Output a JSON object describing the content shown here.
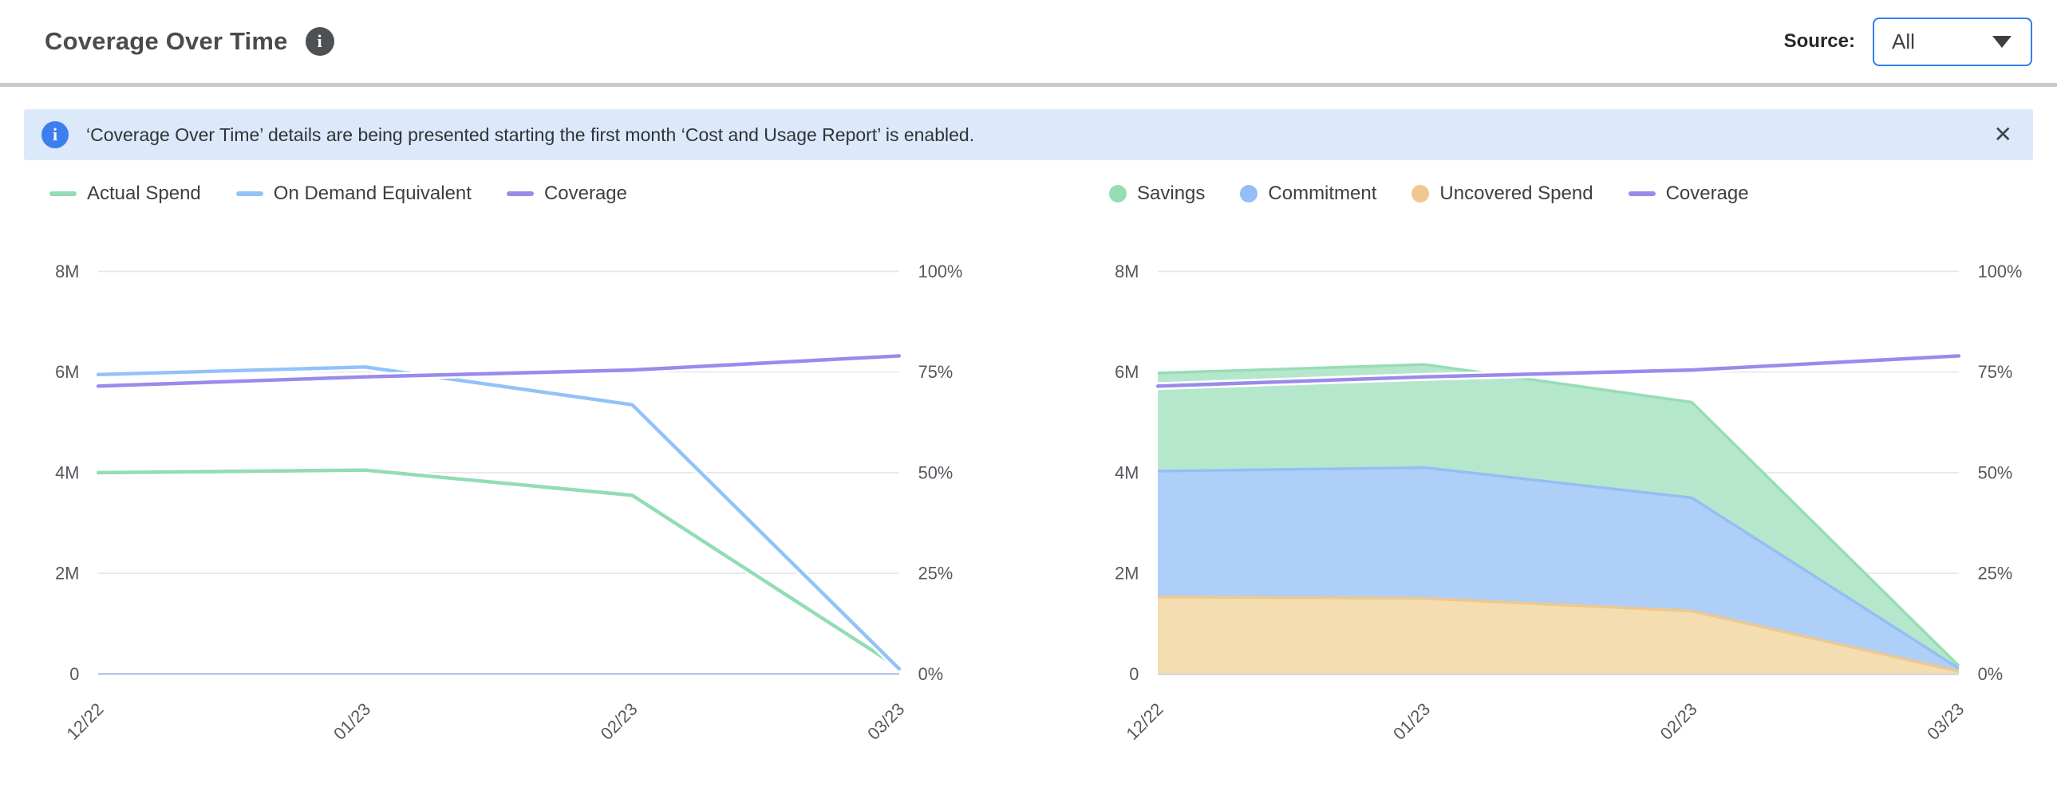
{
  "header": {
    "title": "Coverage Over Time",
    "source_label": "Source:",
    "source_value": "All"
  },
  "icons": {
    "info_glyph": "i",
    "close_glyph": "✕"
  },
  "banner": {
    "text": "‘Coverage Over Time’ details are being presented starting the first month ‘Cost and Usage Report’ is enabled."
  },
  "colors": {
    "accent_blue": "#2e80f0",
    "banner_bg": "#dce9fb",
    "banner_icon": "#3d7ef0",
    "title_icon": "#4d5154",
    "grid": "#e6e6ea",
    "zero_line": "#b7c3e8",
    "axis_text": "#55585e",
    "green": "#93dcb5",
    "blue": "#92c2f8",
    "purple": "#9b8aec",
    "orange": "#eec88f",
    "green_fill": "#b5e7cc",
    "blue_fill": "#aecff7",
    "orange_fill": "#f4ddb0"
  },
  "chart_data": [
    {
      "type": "line",
      "title": "",
      "x": [
        "12/22",
        "01/23",
        "02/23",
        "03/23"
      ],
      "left_axis": {
        "min": 0,
        "max": 8000000,
        "tick_values": [
          0,
          2000000,
          4000000,
          6000000,
          8000000
        ],
        "tick_labels": [
          "0",
          "2M",
          "4M",
          "6M",
          "8M"
        ]
      },
      "right_axis": {
        "min": 0,
        "max": 100,
        "tick_values": [
          0,
          25,
          50,
          75,
          100
        ],
        "tick_labels": [
          "0%",
          "25%",
          "50%",
          "75%",
          "100%"
        ]
      },
      "grid": true,
      "legend_position": "top-left",
      "series": [
        {
          "name": "Actual Spend",
          "type": "line",
          "axis": "left",
          "color": "#93dcb5",
          "values": [
            4000000,
            4050000,
            3550000,
            120000
          ]
        },
        {
          "name": "On Demand Equivalent",
          "type": "line",
          "axis": "left",
          "color": "#92c2f8",
          "values": [
            5950000,
            6100000,
            5350000,
            100000
          ]
        },
        {
          "name": "Coverage",
          "type": "line",
          "axis": "right",
          "color": "#9b8aec",
          "values": [
            71.5,
            73.8,
            75.5,
            79
          ]
        }
      ]
    },
    {
      "type": "area",
      "stacked": true,
      "title": "",
      "x": [
        "12/22",
        "01/23",
        "02/23",
        "03/23"
      ],
      "left_axis": {
        "min": 0,
        "max": 8000000,
        "tick_values": [
          0,
          2000000,
          4000000,
          6000000,
          8000000
        ],
        "tick_labels": [
          "0",
          "2M",
          "4M",
          "6M",
          "8M"
        ]
      },
      "right_axis": {
        "min": 0,
        "max": 100,
        "tick_values": [
          0,
          25,
          50,
          75,
          100
        ],
        "tick_labels": [
          "0%",
          "25%",
          "50%",
          "75%",
          "100%"
        ]
      },
      "grid": true,
      "legend_position": "top-left",
      "series": [
        {
          "name": "Savings",
          "type": "area",
          "stack": 3,
          "axis": "left",
          "color": "#96ddb5",
          "fill": "#b5e7cc",
          "values": [
            1950000,
            2050000,
            1900000,
            50000
          ]
        },
        {
          "name": "Commitment",
          "type": "area",
          "stack": 2,
          "axis": "left",
          "color": "#94bef5",
          "fill": "#aecff7",
          "values": [
            2500000,
            2600000,
            2250000,
            60000
          ]
        },
        {
          "name": "Uncovered Spend",
          "type": "area",
          "stack": 1,
          "axis": "left",
          "color": "#eec88f",
          "fill": "#f4ddb0",
          "values": [
            1530000,
            1500000,
            1250000,
            50000
          ]
        },
        {
          "name": "Coverage",
          "type": "line",
          "axis": "right",
          "color": "#9b8aec",
          "values": [
            71.5,
            73.8,
            75.5,
            79
          ]
        }
      ]
    }
  ]
}
